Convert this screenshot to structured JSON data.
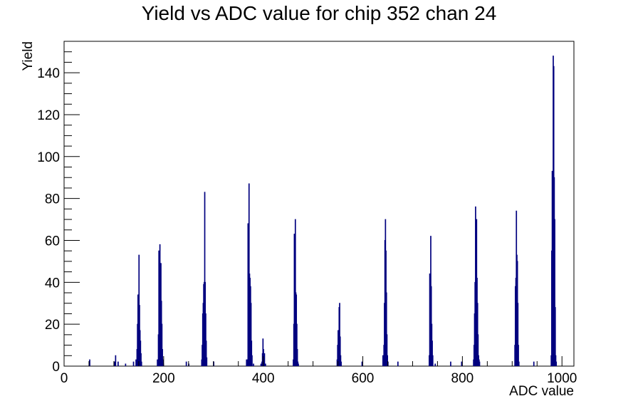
{
  "chart_data": {
    "type": "bar",
    "style": "histogram-step",
    "title": "Yield vs ADC value for chip 352 chan 24",
    "xlabel": "ADC value",
    "ylabel": "Yield",
    "xlim": [
      0,
      1024
    ],
    "ylim": [
      0,
      155
    ],
    "grid": false,
    "legend": "none",
    "x_ticks": [
      0,
      200,
      400,
      600,
      800,
      1000
    ],
    "y_ticks": [
      0,
      20,
      40,
      60,
      80,
      100,
      120,
      140
    ],
    "series": [
      {
        "color": "#00007f",
        "bins": [
          [
            51,
            3
          ],
          [
            101,
            2
          ],
          [
            103,
            5
          ],
          [
            108,
            2
          ],
          [
            123,
            1
          ],
          [
            139,
            2
          ],
          [
            144,
            3
          ],
          [
            146,
            8
          ],
          [
            147,
            20
          ],
          [
            148,
            34
          ],
          [
            149,
            18
          ],
          [
            150,
            53
          ],
          [
            151,
            29
          ],
          [
            152,
            17
          ],
          [
            153,
            12
          ],
          [
            154,
            6
          ],
          [
            155,
            2
          ],
          [
            187,
            3
          ],
          [
            189,
            15
          ],
          [
            190,
            55
          ],
          [
            191,
            31
          ],
          [
            192,
            58
          ],
          [
            193,
            49
          ],
          [
            194,
            49
          ],
          [
            195,
            31
          ],
          [
            196,
            20
          ],
          [
            197,
            8
          ],
          [
            198,
            3
          ],
          [
            199,
            1
          ],
          [
            245,
            2
          ],
          [
            250,
            1
          ],
          [
            276,
            3
          ],
          [
            277,
            10
          ],
          [
            278,
            25
          ],
          [
            279,
            30
          ],
          [
            280,
            39
          ],
          [
            281,
            40
          ],
          [
            282,
            83
          ],
          [
            283,
            40
          ],
          [
            284,
            25
          ],
          [
            285,
            12
          ],
          [
            286,
            4
          ],
          [
            300,
            2
          ],
          [
            366,
            3
          ],
          [
            368,
            3
          ],
          [
            369,
            68
          ],
          [
            370,
            37
          ],
          [
            371,
            87
          ],
          [
            372,
            44
          ],
          [
            373,
            42
          ],
          [
            374,
            38
          ],
          [
            375,
            30
          ],
          [
            376,
            12
          ],
          [
            377,
            5
          ],
          [
            380,
            1
          ],
          [
            395,
            1
          ],
          [
            397,
            2
          ],
          [
            398,
            6
          ],
          [
            399,
            13
          ],
          [
            400,
            8
          ],
          [
            401,
            5
          ],
          [
            402,
            6
          ],
          [
            404,
            1
          ],
          [
            460,
            3
          ],
          [
            461,
            20
          ],
          [
            462,
            63
          ],
          [
            463,
            44
          ],
          [
            464,
            70
          ],
          [
            465,
            35
          ],
          [
            466,
            34
          ],
          [
            467,
            20
          ],
          [
            468,
            8
          ],
          [
            469,
            2
          ],
          [
            470,
            1
          ],
          [
            548,
            3
          ],
          [
            549,
            10
          ],
          [
            550,
            17
          ],
          [
            551,
            7
          ],
          [
            552,
            28
          ],
          [
            553,
            30
          ],
          [
            554,
            14
          ],
          [
            555,
            5
          ],
          [
            556,
            2
          ],
          [
            598,
            2
          ],
          [
            640,
            5
          ],
          [
            642,
            10
          ],
          [
            643,
            30
          ],
          [
            644,
            60
          ],
          [
            645,
            70
          ],
          [
            646,
            55
          ],
          [
            647,
            35
          ],
          [
            648,
            15
          ],
          [
            649,
            5
          ],
          [
            650,
            2
          ],
          [
            670,
            2
          ],
          [
            733,
            5
          ],
          [
            734,
            44
          ],
          [
            735,
            39
          ],
          [
            736,
            62
          ],
          [
            737,
            38
          ],
          [
            738,
            20
          ],
          [
            739,
            12
          ],
          [
            740,
            5
          ],
          [
            745,
            1
          ],
          [
            776,
            2
          ],
          [
            798,
            2
          ],
          [
            822,
            3
          ],
          [
            823,
            10
          ],
          [
            824,
            25
          ],
          [
            825,
            40
          ],
          [
            826,
            76
          ],
          [
            827,
            19
          ],
          [
            828,
            70
          ],
          [
            829,
            42
          ],
          [
            830,
            30
          ],
          [
            831,
            15
          ],
          [
            832,
            5
          ],
          [
            833,
            3
          ],
          [
            834,
            2
          ],
          [
            905,
            10
          ],
          [
            906,
            38
          ],
          [
            907,
            42
          ],
          [
            908,
            74
          ],
          [
            909,
            53
          ],
          [
            910,
            50
          ],
          [
            911,
            30
          ],
          [
            912,
            10
          ],
          [
            913,
            2
          ],
          [
            943,
            2
          ],
          [
            978,
            5
          ],
          [
            979,
            55
          ],
          [
            980,
            93
          ],
          [
            981,
            88
          ],
          [
            982,
            148
          ],
          [
            983,
            143
          ],
          [
            984,
            90
          ],
          [
            985,
            70
          ],
          [
            986,
            28
          ],
          [
            987,
            5
          ],
          [
            988,
            2
          ]
        ]
      }
    ]
  }
}
